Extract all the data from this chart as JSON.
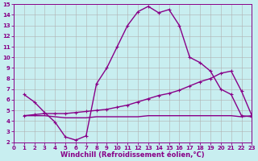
{
  "xlabel": "Windchill (Refroidissement éolien,°C)",
  "background_color": "#c8eef0",
  "grid_color": "#b0b0b0",
  "line_color": "#880088",
  "xlim": [
    0,
    23
  ],
  "ylim": [
    2,
    15
  ],
  "xticks": [
    0,
    1,
    2,
    3,
    4,
    5,
    6,
    7,
    8,
    9,
    10,
    11,
    12,
    13,
    14,
    15,
    16,
    17,
    18,
    19,
    20,
    21,
    22,
    23
  ],
  "yticks": [
    2,
    3,
    4,
    5,
    6,
    7,
    8,
    9,
    10,
    11,
    12,
    13,
    14,
    15
  ],
  "line1_x": [
    1,
    2,
    3,
    4,
    5,
    6,
    7,
    8,
    9,
    10,
    11,
    12,
    13,
    14,
    15,
    16,
    17,
    18,
    19,
    20,
    21,
    22,
    23
  ],
  "line1_y": [
    6.5,
    5.8,
    4.8,
    3.9,
    2.5,
    2.2,
    2.6,
    7.5,
    9.0,
    11.0,
    13.0,
    14.3,
    14.8,
    14.2,
    14.5,
    13.0,
    10.0,
    9.5,
    8.7,
    7.0,
    6.5,
    4.5,
    4.4
  ],
  "line2_x": [
    1,
    2,
    3,
    4,
    5,
    6,
    7,
    8,
    9,
    10,
    11,
    12,
    13,
    14,
    15,
    16,
    17,
    18,
    19,
    20,
    21,
    22,
    23
  ],
  "line2_y": [
    4.5,
    4.6,
    4.7,
    4.7,
    4.7,
    4.8,
    4.9,
    5.0,
    5.1,
    5.3,
    5.5,
    5.8,
    6.1,
    6.4,
    6.6,
    6.9,
    7.3,
    7.7,
    8.0,
    8.5,
    8.7,
    6.8,
    4.5
  ],
  "line3_x": [
    1,
    2,
    3,
    4,
    5,
    6,
    7,
    8,
    9,
    10,
    11,
    12,
    13,
    14,
    15,
    16,
    17,
    18,
    19,
    20,
    21,
    22,
    23
  ],
  "line3_y": [
    4.5,
    4.5,
    4.5,
    4.4,
    4.3,
    4.3,
    4.3,
    4.4,
    4.4,
    4.4,
    4.4,
    4.4,
    4.5,
    4.5,
    4.5,
    4.5,
    4.5,
    4.5,
    4.5,
    4.5,
    4.5,
    4.4,
    4.5
  ],
  "linewidth": 1.0,
  "tick_fontsize": 5.0,
  "xlabel_fontsize": 6.0,
  "markersize": 3.5,
  "markeredgewidth": 0.8
}
